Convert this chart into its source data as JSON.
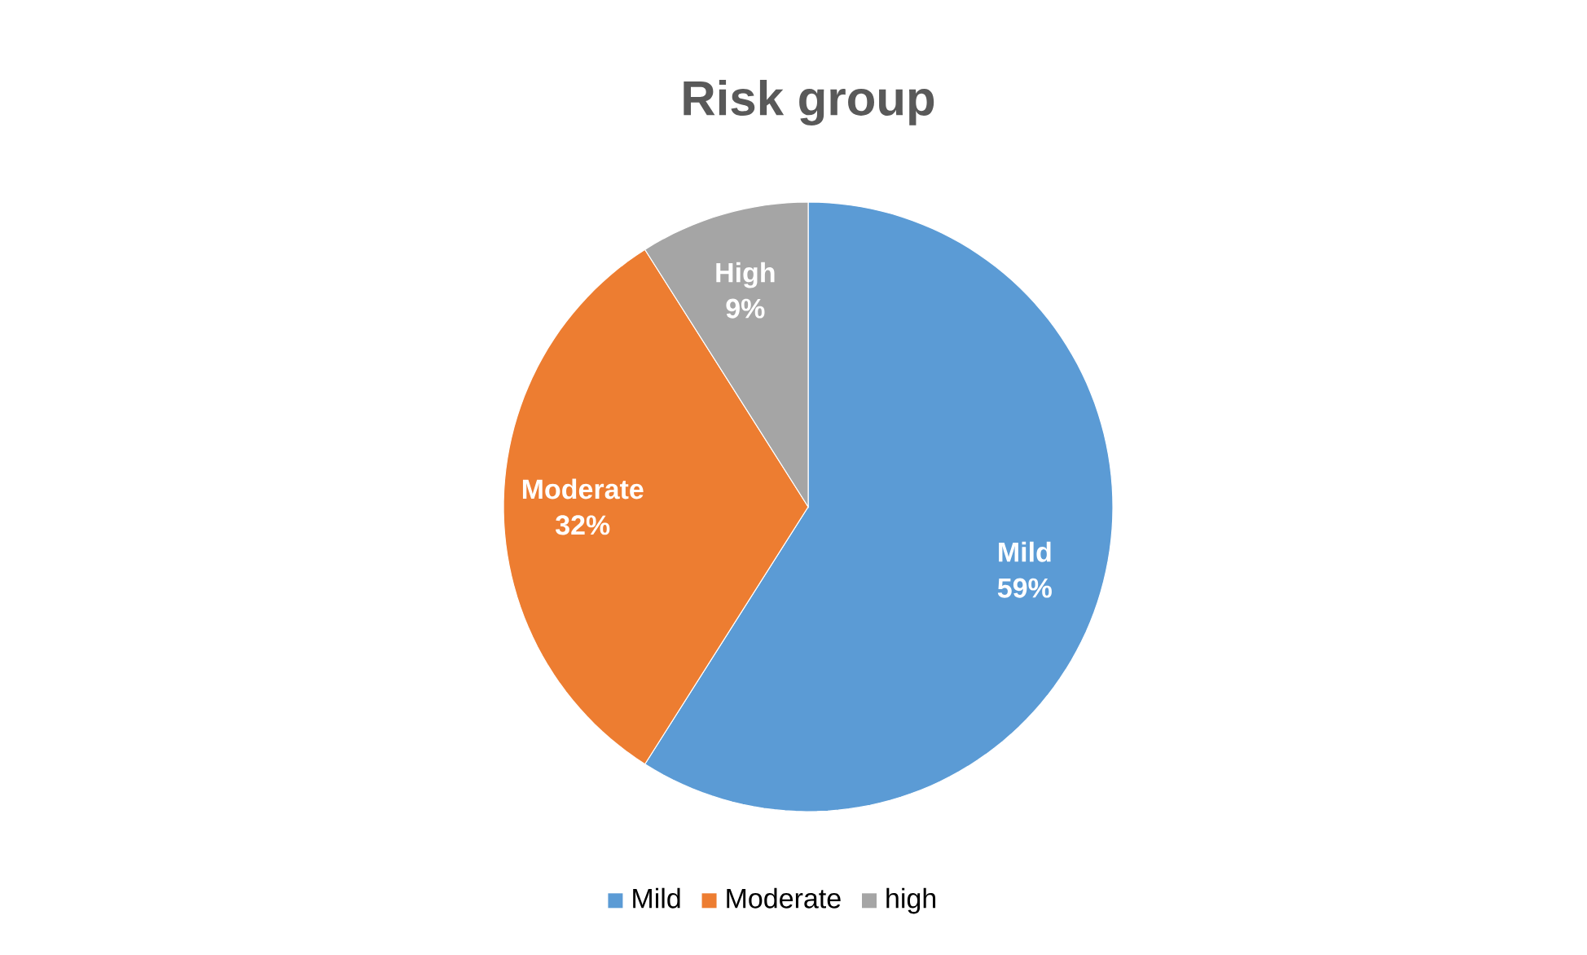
{
  "chart_data": {
    "type": "pie",
    "title": "Risk group",
    "categories": [
      "Mild",
      "Moderate",
      "high"
    ],
    "values": [
      59,
      32,
      9
    ],
    "value_labels": [
      "59%",
      "32%",
      "9%"
    ],
    "colors": [
      "#5b9bd5",
      "#ed7d31",
      "#a5a5a5"
    ],
    "annotations": [
      "Mild",
      "Moderate",
      "High"
    ],
    "legend": "bottom"
  }
}
